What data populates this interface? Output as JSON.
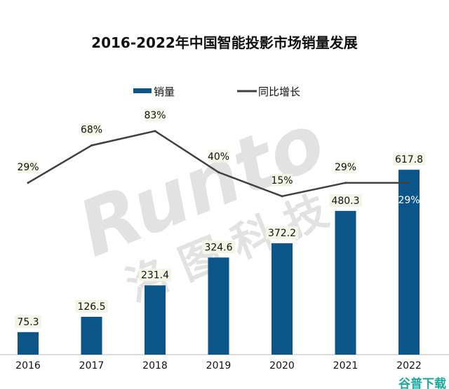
{
  "chart_data": {
    "type": "bar+line",
    "title": "2016-2022年中国智能投影市场销量发展",
    "categories": [
      "2016",
      "2017",
      "2018",
      "2019",
      "2020",
      "2021",
      "2022"
    ],
    "series": [
      {
        "name": "销量",
        "type": "bar",
        "values": [
          75.3,
          126.5,
          231.4,
          324.6,
          372.2,
          480.3,
          617.8
        ],
        "labels": [
          "75.3",
          "126.5",
          "231.4",
          "324.6",
          "372.2",
          "480.3",
          "617.8"
        ]
      },
      {
        "name": "同比增长",
        "type": "line",
        "values": [
          29,
          68,
          83,
          40,
          15,
          29,
          29
        ],
        "labels": [
          "29%",
          "68%",
          "83%",
          "40%",
          "15%",
          "29%",
          "29%"
        ]
      }
    ],
    "legend_position": "top",
    "grid": false,
    "colors": {
      "bar": "#0b5588",
      "line": "#404040",
      "label_bg": "#f3f6e6"
    }
  },
  "watermark": {
    "text": "Runto 洛图科技"
  },
  "logo": {
    "text": "谷普下载",
    "color": "#1aa89a"
  }
}
